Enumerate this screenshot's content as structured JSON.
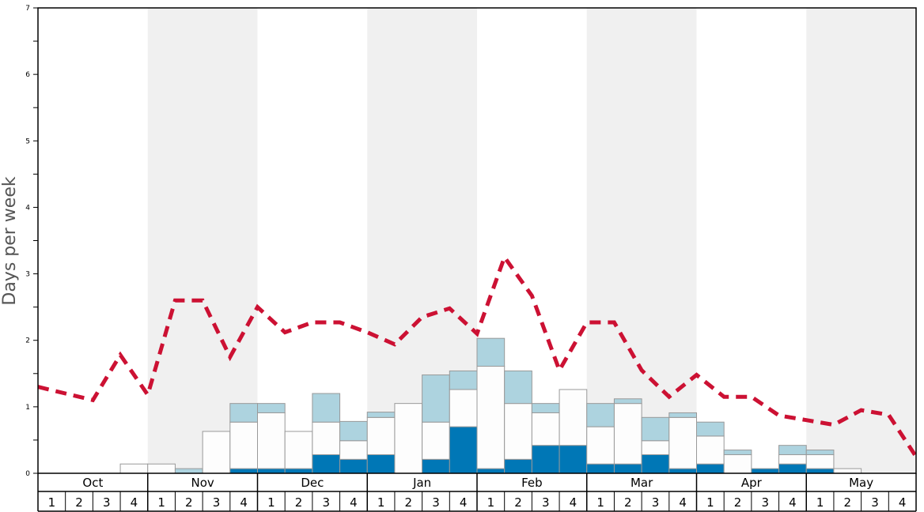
{
  "chart_data": {
    "type": "bar",
    "ylabel": "Days per week",
    "ylim": [
      0,
      7
    ],
    "yticks": [
      "0",
      "1",
      "2",
      "3",
      "4",
      "5",
      "6",
      "7"
    ],
    "months": [
      "Oct",
      "Nov",
      "Dec",
      "Jan",
      "Feb",
      "Mar",
      "Apr",
      "May"
    ],
    "week_labels": [
      "1",
      "2",
      "3",
      "4"
    ],
    "stack_order": [
      "dark",
      "white",
      "light"
    ],
    "colors": {
      "dark": "#0077b6",
      "white": "#fdfdfd",
      "light": "#add3df",
      "line": "#cc1133",
      "shade": "#f0f0f0",
      "bar_edge": "#999999"
    },
    "weeks": [
      {
        "dark": 0,
        "white": 0,
        "light": 0
      },
      {
        "dark": 0,
        "white": 0,
        "light": 0
      },
      {
        "dark": 0,
        "white": 0,
        "light": 0
      },
      {
        "dark": 0,
        "white": 0.14,
        "light": 0
      },
      {
        "dark": 0,
        "white": 0.14,
        "light": 0
      },
      {
        "dark": 0,
        "white": 0,
        "light": 0.07
      },
      {
        "dark": 0,
        "white": 0.63,
        "light": 0
      },
      {
        "dark": 0.07,
        "white": 0.7,
        "light": 0.28
      },
      {
        "dark": 0.07,
        "white": 0.84,
        "light": 0.14
      },
      {
        "dark": 0.07,
        "white": 0.56,
        "light": 0
      },
      {
        "dark": 0.28,
        "white": 0.49,
        "light": 0.43
      },
      {
        "dark": 0.21,
        "white": 0.28,
        "light": 0.29
      },
      {
        "dark": 0.28,
        "white": 0.56,
        "light": 0.08
      },
      {
        "dark": 0,
        "white": 1.05,
        "light": 0
      },
      {
        "dark": 0.21,
        "white": 0.56,
        "light": 0.71
      },
      {
        "dark": 0.7,
        "white": 0.56,
        "light": 0.28
      },
      {
        "dark": 0.07,
        "white": 1.54,
        "light": 0.42
      },
      {
        "dark": 0.21,
        "white": 0.84,
        "light": 0.49
      },
      {
        "dark": 0.42,
        "white": 0.49,
        "light": 0.14
      },
      {
        "dark": 0.42,
        "white": 0.84,
        "light": 0
      },
      {
        "dark": 0.14,
        "white": 0.56,
        "light": 0.35
      },
      {
        "dark": 0.14,
        "white": 0.91,
        "light": 0.07
      },
      {
        "dark": 0.28,
        "white": 0.21,
        "light": 0.35
      },
      {
        "dark": 0.07,
        "white": 0.77,
        "light": 0.07
      },
      {
        "dark": 0.14,
        "white": 0.42,
        "light": 0.21
      },
      {
        "dark": 0,
        "white": 0.28,
        "light": 0.07
      },
      {
        "dark": 0.07,
        "white": 0,
        "light": 0
      },
      {
        "dark": 0.14,
        "white": 0.14,
        "light": 0.14
      },
      {
        "dark": 0.07,
        "white": 0.21,
        "light": 0.07
      },
      {
        "dark": 0,
        "white": 0.07,
        "light": 0
      },
      {
        "dark": 0,
        "white": 0,
        "light": 0
      },
      {
        "dark": 0,
        "white": 0,
        "light": 0
      }
    ],
    "line": [
      1.3,
      1.2,
      1.1,
      1.78,
      1.18,
      2.6,
      2.6,
      1.75,
      2.5,
      2.12,
      2.27,
      2.27,
      2.12,
      1.94,
      2.35,
      2.48,
      2.1,
      3.25,
      2.67,
      1.55,
      2.27,
      2.27,
      1.55,
      1.15,
      1.48,
      1.15,
      1.15,
      0.87,
      0.8,
      0.73,
      0.95,
      0.88,
      0.25
    ]
  }
}
